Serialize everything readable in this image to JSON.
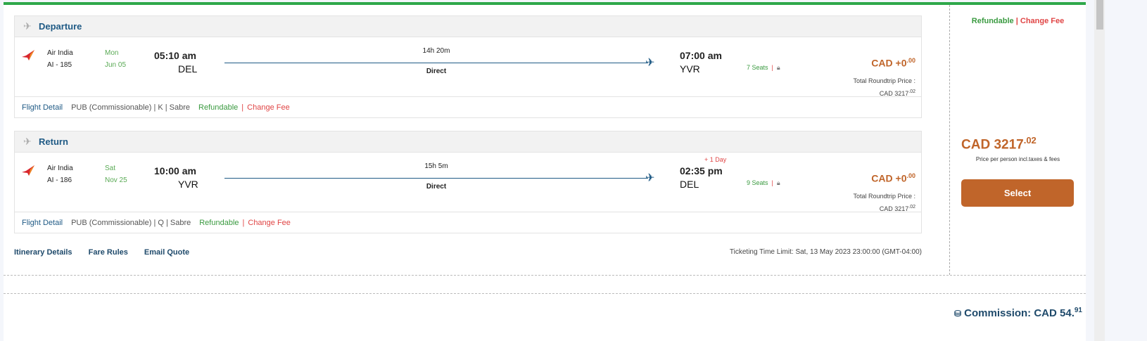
{
  "segments": [
    {
      "title": "Departure",
      "airline": "Air India",
      "flight": "AI - 185",
      "day": "Mon",
      "date": "Jun 05",
      "dep_time": "05:10 am",
      "dep_code": "DEL",
      "duration": "14h 20m",
      "stops": "Direct",
      "arr_time": "07:00 am",
      "arr_code": "YVR",
      "arr_note": "",
      "seats": "7 Seats",
      "price": "CAD +0",
      "price_cents": ".00",
      "total_label": "Total Roundtrip Price :",
      "total": "CAD 3217",
      "total_cents": ".02",
      "flight_detail": "Flight Detail",
      "fare_info": "PUB (Commissionable) | K | Sabre",
      "refundable": "Refundable",
      "change_fee": "Change Fee"
    },
    {
      "title": "Return",
      "airline": "Air India",
      "flight": "AI - 186",
      "day": "Sat",
      "date": "Nov 25",
      "dep_time": "10:00 am",
      "dep_code": "YVR",
      "duration": "15h 5m",
      "stops": "Direct",
      "arr_time": "02:35 pm",
      "arr_code": "DEL",
      "arr_note": "+ 1 Day",
      "seats": "9 Seats",
      "price": "CAD +0",
      "price_cents": ".00",
      "total_label": "Total Roundtrip Price :",
      "total": "CAD 3217",
      "total_cents": ".02",
      "flight_detail": "Flight Detail",
      "fare_info": "PUB (Commissionable) | Q | Sabre",
      "refundable": "Refundable",
      "change_fee": "Change Fee"
    }
  ],
  "links": {
    "itinerary": "Itinerary Details",
    "fare_rules": "Fare Rules",
    "email": "Email Quote"
  },
  "ticketing_limit": "Ticketing Time Limit: Sat, 13 May 2023 23:00:00 (GMT-04:00)",
  "panel": {
    "refundable": "Refundable",
    "separator": "|",
    "change_fee": "Change Fee",
    "price": "CAD 3217",
    "price_cents": ".02",
    "price_note": "Price per person incl.taxes & fees",
    "select": "Select"
  },
  "commission": {
    "label": "Commission: CAD 54.",
    "cents": "91"
  },
  "colors": {
    "accent": "#c0652a",
    "green": "#2ea84a",
    "navy": "#1f5a85"
  }
}
